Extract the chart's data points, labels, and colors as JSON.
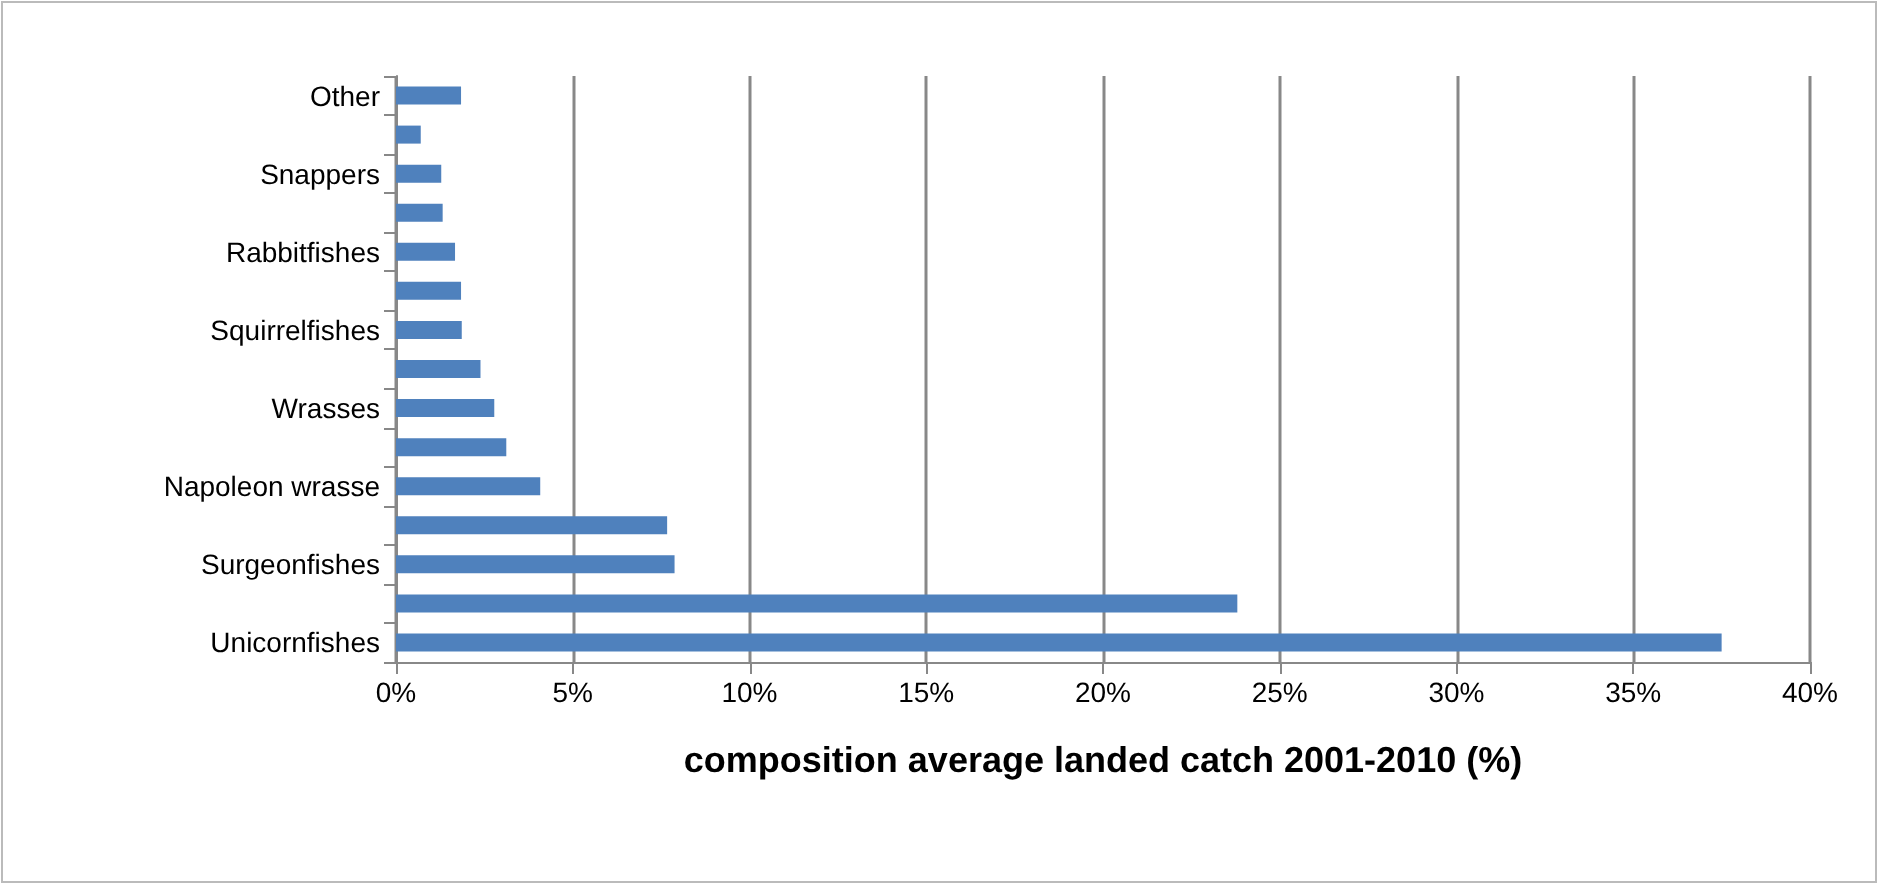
{
  "chart_data": {
    "type": "bar",
    "orientation": "horizontal",
    "xlabel": "composition average landed catch 2001-2010 (%)",
    "categories": [
      "Other",
      null,
      "Snappers",
      null,
      "Rabbitfishes",
      null,
      "Squirrelfishes",
      null,
      "Wrasses",
      null,
      "Napoleon wrasse",
      null,
      "Surgeonfishes",
      null,
      "Unicornfishes"
    ],
    "values": [
      1.84,
      0.7,
      1.28,
      1.32,
      1.67,
      1.84,
      1.86,
      2.39,
      2.78,
      3.12,
      4.08,
      7.67,
      7.88,
      23.8,
      37.5
    ],
    "color": "#4f81bd",
    "xlim": [
      0,
      40
    ],
    "xticks": [
      {
        "value": 0,
        "label": "0%"
      },
      {
        "value": 5,
        "label": "5%"
      },
      {
        "value": 10,
        "label": "10%"
      },
      {
        "value": 15,
        "label": "15%"
      },
      {
        "value": 20,
        "label": "20%"
      },
      {
        "value": 25,
        "label": "25%"
      },
      {
        "value": 30,
        "label": "30%"
      },
      {
        "value": 35,
        "label": "35%"
      },
      {
        "value": 40,
        "label": "40%"
      }
    ],
    "grid": "x"
  }
}
